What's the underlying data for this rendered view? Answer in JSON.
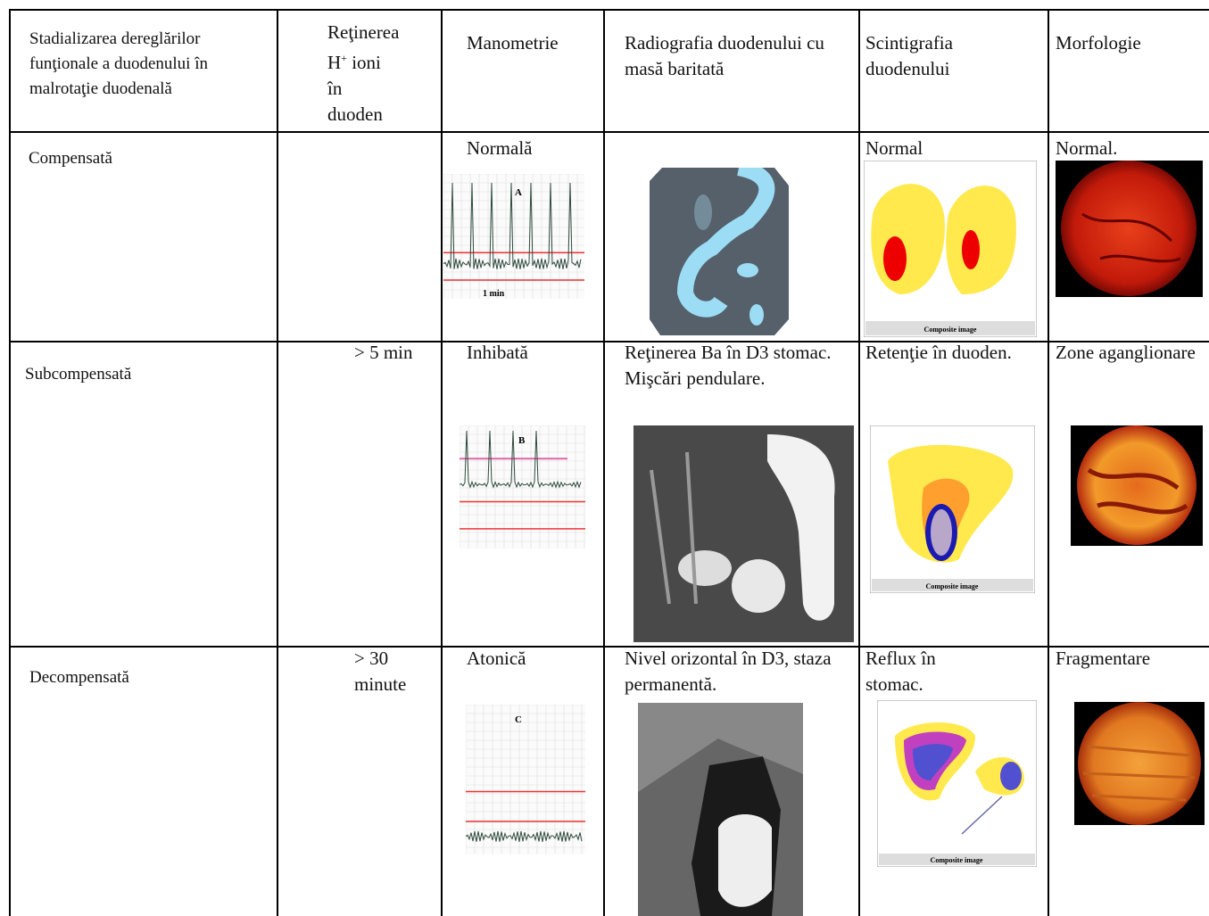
{
  "header": {
    "columns": [
      "Stadializarea dereglărilor funţionale a duodenului în malrotaţie duodenală",
      {
        "line1": "Reţinerea",
        "ion": "H",
        "charge": "+",
        "ions": "ioni",
        "rest": "în duoden"
      },
      "Manometrie",
      "Radiografia duodenului cu masă baritată",
      "Scintigrafia duodenului",
      "Morfologie"
    ]
  },
  "rows": [
    {
      "stage": "Compensată",
      "manometry": "Normală",
      "manometry_image": {
        "label": "A",
        "scale": "1 min"
      },
      "scintigraphy": "Normal",
      "scintigraphy_image": "Composite image",
      "morphology": "Normal."
    },
    {
      "stage": "Subcompensată",
      "retention": "> 5 min",
      "manometry": "Inhibată",
      "manometry_image": {
        "label": "B"
      },
      "radiography": "Reţinerea Ba în D3 stomac. Mişcări pendulare.",
      "scintigraphy": "Retenţie în duoden.",
      "scintigraphy_image": "Composite image",
      "morphology": "Zone aganglionare"
    },
    {
      "stage": "Decompensată",
      "retention": "> 30 minute",
      "manometry": "Atonică",
      "manometry_image": {
        "label": "C"
      },
      "radiography": "Nivel orizontal în D3, staza permanentă.",
      "scintigraphy": "Reflux în stomac.",
      "scintigraphy_image": "Composite image",
      "morphology": "Fragmentare"
    }
  ]
}
